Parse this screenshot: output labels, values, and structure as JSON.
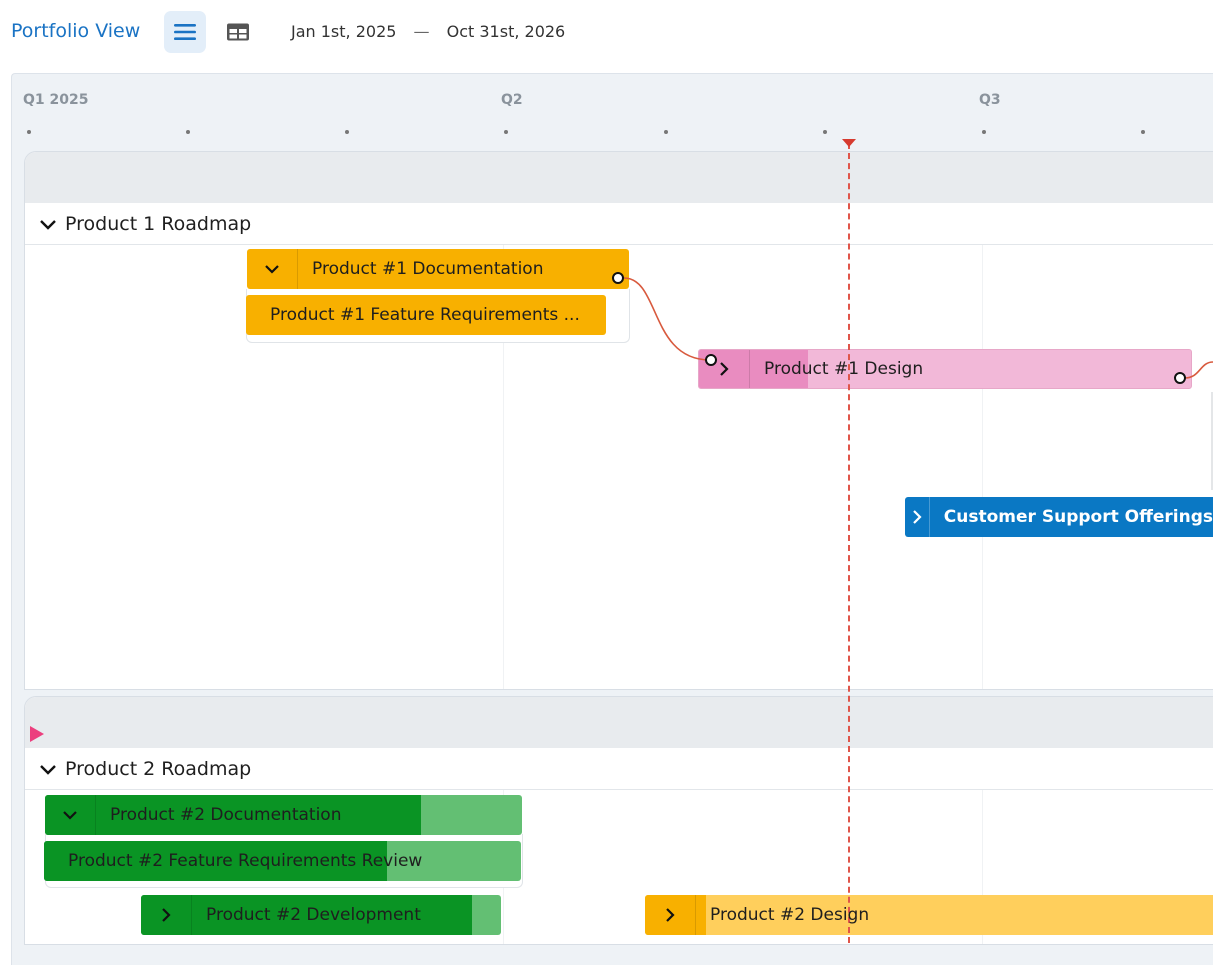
{
  "header": {
    "title": "Portfolio View",
    "list_view_icon": "list-view-icon",
    "table_view_icon": "table-view-icon",
    "date_start": "Jan 1st, 2025",
    "date_separator": "—",
    "date_end": "Oct 31st, 2026"
  },
  "timeline": {
    "quarters": [
      "Q1 2025",
      "Q2",
      "Q3"
    ]
  },
  "groups": [
    {
      "title": "Product 1 Roadmap",
      "items": [
        {
          "label": "Product #1 Documentation",
          "color": "#f8b000"
        },
        {
          "label": "Product #1 Feature Requirements ...",
          "color": "#f8b000"
        },
        {
          "label": "Product #1 Design",
          "color": "#f2b8d8",
          "progress_color": "#e98cc0"
        },
        {
          "label": "Customer Support Offerings",
          "color": "#0a78c4"
        }
      ]
    },
    {
      "title": "Product 2 Roadmap",
      "items": [
        {
          "label": "Product #2 Documentation",
          "color": "#63bf73",
          "progress_color": "#0a9424"
        },
        {
          "label": "Product #2 Feature Requirements Review",
          "color": "#63bf73",
          "progress_color": "#0a9424"
        },
        {
          "label": "Product #2 Development",
          "color": "#63bf73",
          "progress_color": "#0a9424"
        },
        {
          "label": "Product #2 Design",
          "color": "#ffcf5c",
          "progress_color": "#f8b000"
        }
      ]
    }
  ]
}
